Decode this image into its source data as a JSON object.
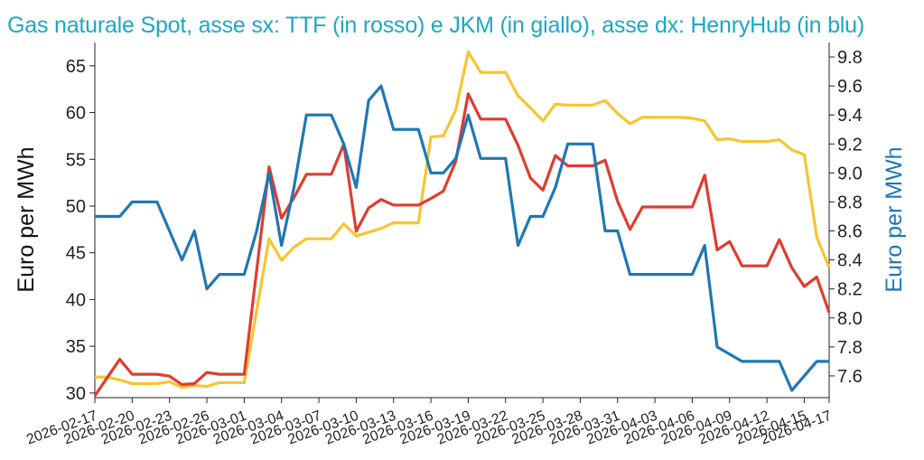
{
  "chart_data": {
    "type": "line",
    "title": "Gas naturale Spot, asse sx: TTF (in rosso) e JKM (in giallo), asse dx: HenryHub (in blu)",
    "ylabel_left": "Euro per MWh",
    "ylabel_right": "Euro per MWh",
    "ylim_left": [
      29.5,
      67.5
    ],
    "ylim_right": [
      7.45,
      9.9
    ],
    "yticks_left": [
      30,
      35,
      40,
      45,
      50,
      55,
      60,
      65
    ],
    "yticks_right": [
      7.6,
      7.8,
      8.0,
      8.2,
      8.4,
      8.6,
      8.8,
      9.0,
      9.2,
      9.4,
      9.6,
      9.8
    ],
    "xlim": [
      "2026-02-17",
      "2026-04-17"
    ],
    "xticks": [
      "2026-02-17",
      "2026-02-20",
      "2026-02-23",
      "2026-02-26",
      "2026-03-01",
      "2026-03-04",
      "2026-03-07",
      "2026-03-10",
      "2026-03-13",
      "2026-03-16",
      "2026-03-19",
      "2026-03-22",
      "2026-03-25",
      "2026-03-28",
      "2026-03-31",
      "2026-04-03",
      "2026-04-06",
      "2026-04-09",
      "2026-04-12",
      "2026-04-15",
      "2026-04-17"
    ],
    "grid": false,
    "series": [
      {
        "name": "TTF",
        "axis": "left",
        "color": "#e03c31",
        "points": [
          [
            "2026-02-17",
            29.7
          ],
          [
            "2026-02-19",
            33.6
          ],
          [
            "2026-02-20",
            32.0
          ],
          [
            "2026-02-21",
            32.0
          ],
          [
            "2026-02-22",
            32.0
          ],
          [
            "2026-02-23",
            31.8
          ],
          [
            "2026-02-24",
            30.9
          ],
          [
            "2026-02-25",
            31.0
          ],
          [
            "2026-02-26",
            32.2
          ],
          [
            "2026-02-27",
            32.0
          ],
          [
            "2026-02-28",
            32.0
          ],
          [
            "2026-03-01",
            32.0
          ],
          [
            "2026-03-03",
            54.2
          ],
          [
            "2026-03-04",
            48.7
          ],
          [
            "2026-03-05",
            50.9
          ],
          [
            "2026-03-06",
            53.4
          ],
          [
            "2026-03-07",
            53.4
          ],
          [
            "2026-03-08",
            53.4
          ],
          [
            "2026-03-09",
            56.6
          ],
          [
            "2026-03-10",
            47.3
          ],
          [
            "2026-03-11",
            49.8
          ],
          [
            "2026-03-12",
            50.7
          ],
          [
            "2026-03-13",
            50.1
          ],
          [
            "2026-03-14",
            50.1
          ],
          [
            "2026-03-15",
            50.1
          ],
          [
            "2026-03-16",
            50.8
          ],
          [
            "2026-03-17",
            51.6
          ],
          [
            "2026-03-18",
            54.8
          ],
          [
            "2026-03-19",
            62.0
          ],
          [
            "2026-03-20",
            59.3
          ],
          [
            "2026-03-21",
            59.3
          ],
          [
            "2026-03-22",
            59.3
          ],
          [
            "2026-03-23",
            56.5
          ],
          [
            "2026-03-24",
            53.0
          ],
          [
            "2026-03-25",
            51.7
          ],
          [
            "2026-03-26",
            55.4
          ],
          [
            "2026-03-27",
            54.3
          ],
          [
            "2026-03-28",
            54.3
          ],
          [
            "2026-03-29",
            54.3
          ],
          [
            "2026-03-30",
            54.9
          ],
          [
            "2026-03-31",
            50.5
          ],
          [
            "2026-04-01",
            47.5
          ],
          [
            "2026-04-02",
            49.9
          ],
          [
            "2026-04-03",
            49.9
          ],
          [
            "2026-04-04",
            49.9
          ],
          [
            "2026-04-05",
            49.9
          ],
          [
            "2026-04-06",
            49.9
          ],
          [
            "2026-04-07",
            53.3
          ],
          [
            "2026-04-08",
            45.3
          ],
          [
            "2026-04-09",
            46.2
          ],
          [
            "2026-04-10",
            43.6
          ],
          [
            "2026-04-11",
            43.6
          ],
          [
            "2026-04-12",
            43.6
          ],
          [
            "2026-04-13",
            46.4
          ],
          [
            "2026-04-14",
            43.4
          ],
          [
            "2026-04-15",
            41.4
          ],
          [
            "2026-04-16",
            42.4
          ],
          [
            "2026-04-17",
            38.6
          ]
        ]
      },
      {
        "name": "JKM",
        "axis": "left",
        "color": "#f7c530",
        "points": [
          [
            "2026-02-17",
            31.7
          ],
          [
            "2026-02-18",
            31.7
          ],
          [
            "2026-02-19",
            31.4
          ],
          [
            "2026-02-20",
            31.0
          ],
          [
            "2026-02-21",
            31.0
          ],
          [
            "2026-02-22",
            31.0
          ],
          [
            "2026-02-23",
            31.2
          ],
          [
            "2026-02-24",
            30.6
          ],
          [
            "2026-02-25",
            30.8
          ],
          [
            "2026-02-26",
            30.7
          ],
          [
            "2026-02-27",
            31.1
          ],
          [
            "2026-02-28",
            31.1
          ],
          [
            "2026-03-01",
            31.1
          ],
          [
            "2026-03-03",
            46.5
          ],
          [
            "2026-03-04",
            44.2
          ],
          [
            "2026-03-05",
            45.6
          ],
          [
            "2026-03-06",
            46.5
          ],
          [
            "2026-03-07",
            46.5
          ],
          [
            "2026-03-08",
            46.5
          ],
          [
            "2026-03-09",
            48.1
          ],
          [
            "2026-03-10",
            46.8
          ],
          [
            "2026-03-11",
            47.2
          ],
          [
            "2026-03-12",
            47.6
          ],
          [
            "2026-03-13",
            48.2
          ],
          [
            "2026-03-14",
            48.2
          ],
          [
            "2026-03-15",
            48.2
          ],
          [
            "2026-03-16",
            57.4
          ],
          [
            "2026-03-17",
            57.5
          ],
          [
            "2026-03-18",
            60.3
          ],
          [
            "2026-03-19",
            66.5
          ],
          [
            "2026-03-20",
            64.3
          ],
          [
            "2026-03-21",
            64.3
          ],
          [
            "2026-03-22",
            64.3
          ],
          [
            "2026-03-23",
            61.8
          ],
          [
            "2026-03-24",
            60.5
          ],
          [
            "2026-03-25",
            59.1
          ],
          [
            "2026-03-26",
            60.9
          ],
          [
            "2026-03-27",
            60.8
          ],
          [
            "2026-03-28",
            60.8
          ],
          [
            "2026-03-29",
            60.8
          ],
          [
            "2026-03-30",
            61.3
          ],
          [
            "2026-03-31",
            59.9
          ],
          [
            "2026-04-01",
            58.8
          ],
          [
            "2026-04-02",
            59.5
          ],
          [
            "2026-04-03",
            59.5
          ],
          [
            "2026-04-04",
            59.5
          ],
          [
            "2026-04-05",
            59.5
          ],
          [
            "2026-04-06",
            59.4
          ],
          [
            "2026-04-07",
            59.1
          ],
          [
            "2026-04-08",
            57.1
          ],
          [
            "2026-04-09",
            57.2
          ],
          [
            "2026-04-10",
            56.9
          ],
          [
            "2026-04-11",
            56.9
          ],
          [
            "2026-04-12",
            56.9
          ],
          [
            "2026-04-13",
            57.1
          ],
          [
            "2026-04-14",
            56.0
          ],
          [
            "2026-04-15",
            55.5
          ],
          [
            "2026-04-16",
            46.7
          ],
          [
            "2026-04-17",
            43.4
          ]
        ]
      },
      {
        "name": "HenryHub",
        "axis": "right",
        "color": "#1f77b4",
        "points": [
          [
            "2026-02-17",
            8.7
          ],
          [
            "2026-02-19",
            8.7
          ],
          [
            "2026-02-20",
            8.8
          ],
          [
            "2026-02-22",
            8.8
          ],
          [
            "2026-02-24",
            8.4
          ],
          [
            "2026-02-25",
            8.6
          ],
          [
            "2026-02-26",
            8.2
          ],
          [
            "2026-02-27",
            8.3
          ],
          [
            "2026-03-01",
            8.3
          ],
          [
            "2026-03-02",
            8.6
          ],
          [
            "2026-03-03",
            9.0
          ],
          [
            "2026-03-04",
            8.5
          ],
          [
            "2026-03-05",
            8.9
          ],
          [
            "2026-03-06",
            9.4
          ],
          [
            "2026-03-08",
            9.4
          ],
          [
            "2026-03-09",
            9.2
          ],
          [
            "2026-03-10",
            8.9
          ],
          [
            "2026-03-11",
            9.5
          ],
          [
            "2026-03-12",
            9.6
          ],
          [
            "2026-03-13",
            9.3
          ],
          [
            "2026-03-15",
            9.3
          ],
          [
            "2026-03-16",
            9.0
          ],
          [
            "2026-03-17",
            9.0
          ],
          [
            "2026-03-18",
            9.1
          ],
          [
            "2026-03-19",
            9.4
          ],
          [
            "2026-03-20",
            9.1
          ],
          [
            "2026-03-22",
            9.1
          ],
          [
            "2026-03-23",
            8.5
          ],
          [
            "2026-03-24",
            8.7
          ],
          [
            "2026-03-25",
            8.7
          ],
          [
            "2026-03-26",
            8.9
          ],
          [
            "2026-03-27",
            9.2
          ],
          [
            "2026-03-29",
            9.2
          ],
          [
            "2026-03-30",
            8.6
          ],
          [
            "2026-03-31",
            8.6
          ],
          [
            "2026-04-01",
            8.3
          ],
          [
            "2026-04-06",
            8.3
          ],
          [
            "2026-04-07",
            8.5
          ],
          [
            "2026-04-08",
            7.8
          ],
          [
            "2026-04-10",
            7.7
          ],
          [
            "2026-04-13",
            7.7
          ],
          [
            "2026-04-14",
            7.5
          ],
          [
            "2026-04-16",
            7.7
          ],
          [
            "2026-04-17",
            7.7
          ]
        ]
      }
    ]
  }
}
